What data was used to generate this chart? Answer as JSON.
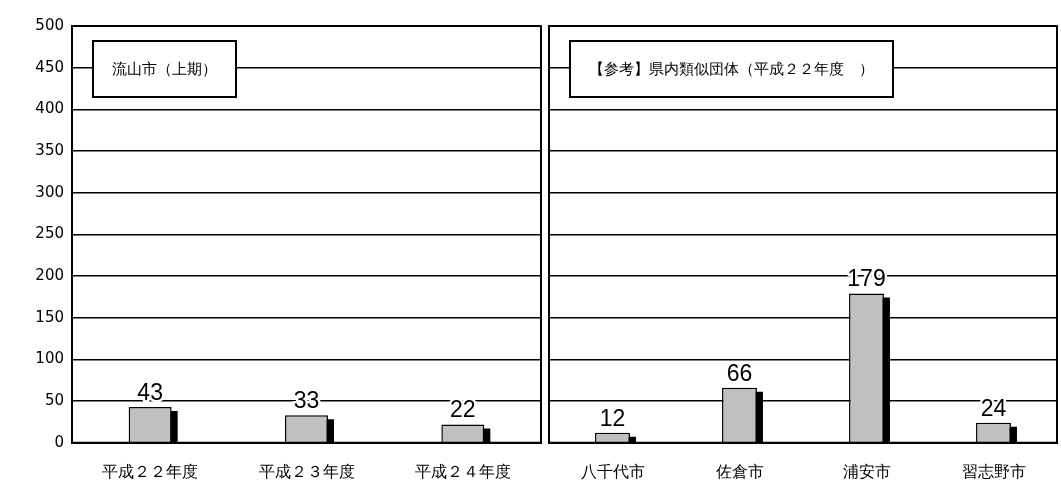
{
  "chart_data": [
    {
      "type": "bar",
      "title": "流山市（上期）",
      "categories": [
        "平成２２年度",
        "平成２３年度",
        "平成２４年度"
      ],
      "values": [
        43,
        33,
        22
      ],
      "color": "#c0c0c0",
      "ylim": [
        0,
        500
      ],
      "yticks": [
        0,
        50,
        100,
        150,
        200,
        250,
        300,
        350,
        400,
        450,
        500
      ],
      "grid": "y",
      "data_labels": true
    },
    {
      "type": "bar",
      "title": "【参考】県内類似団体（平成２２年度　）",
      "categories": [
        "八千代市",
        "佐倉市",
        "浦安市",
        "習志野市"
      ],
      "values": [
        12,
        66,
        179,
        24
      ],
      "color": "#c0c0c0",
      "ylim": [
        0,
        500
      ],
      "yticks": [
        0,
        50,
        100,
        150,
        200,
        250,
        300,
        350,
        400,
        450,
        500
      ],
      "grid": "y",
      "data_labels": true,
      "tick_labels": "x"
    }
  ]
}
